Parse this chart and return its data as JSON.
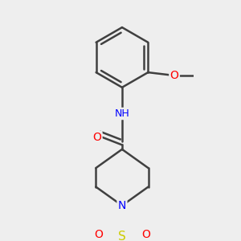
{
  "bg_color": "#eeeeee",
  "bond_color": "#404040",
  "bond_width": 1.8,
  "atom_colors": {
    "O": "#ff0000",
    "N": "#0000ff",
    "S": "#cccc00",
    "C": "#404040",
    "H": "#808080"
  },
  "font_size": 9
}
